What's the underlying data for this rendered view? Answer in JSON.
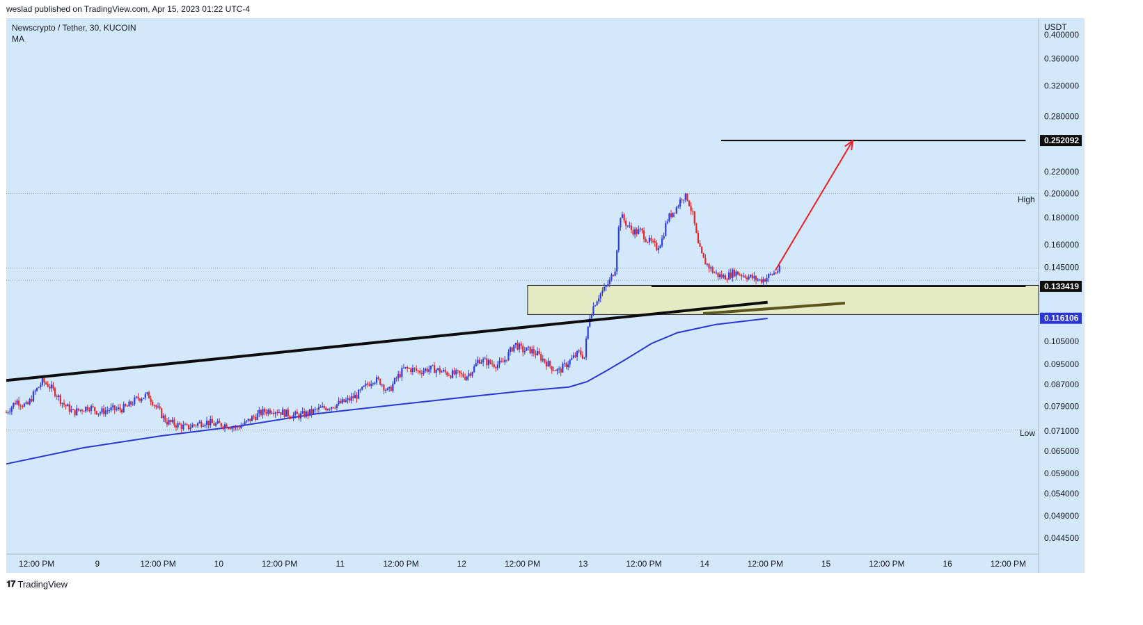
{
  "header": {
    "publish_text": "weslad published on TradingView.com, Apr 15, 2023 01:22 UTC-4"
  },
  "legend": {
    "symbol": "Newscrypto / Tether, 30, KUCOIN",
    "indicator": "MA"
  },
  "footer": {
    "brand": "TradingView"
  },
  "colors": {
    "background": "#d3e8fb",
    "up": "#2f3be6",
    "down": "#e5252a",
    "ma": "#2a35d4",
    "zone": "#e5ebc4",
    "arrow": "#ef1c24"
  },
  "chart_data": {
    "type": "candlestick",
    "title": "Newscrypto / Tether, 30, KUCOIN",
    "currency": "USDT",
    "y_scale": "log",
    "ylim": [
      0.0415,
      0.43
    ],
    "y_ticks": [
      "0.400000",
      "0.360000",
      "0.320000",
      "0.280000",
      "0.220000",
      "0.200000",
      "0.180000",
      "0.160000",
      "0.145000",
      "0.105000",
      "0.095000",
      "0.087000",
      "0.079000",
      "0.071000",
      "0.065000",
      "0.059000",
      "0.054000",
      "0.049000",
      "0.044500"
    ],
    "x_ticks": [
      "12:00 PM",
      "9",
      "12:00 PM",
      "10",
      "12:00 PM",
      "11",
      "12:00 PM",
      "12",
      "12:00 PM",
      "13",
      "12:00 PM",
      "14",
      "12:00 PM",
      "15",
      "12:00 PM",
      "16",
      "12:00 PM"
    ],
    "x_range_days": [
      "Apr 8 06:00",
      "Apr 16 18:00"
    ],
    "price_labels": [
      {
        "value": "0.252092",
        "style": "dark"
      },
      {
        "value": "0.133419",
        "style": "dark"
      },
      {
        "value": "0.116106",
        "style": "blue"
      }
    ],
    "markers": {
      "high_label": "High",
      "high_value": 0.2,
      "low_label": "Low",
      "low_value": 0.0713
    },
    "dotted_levels": [
      0.2,
      0.1445,
      0.137,
      0.0713
    ],
    "close_path": [
      [
        0,
        0.077
      ],
      [
        4,
        0.081
      ],
      [
        8,
        0.079
      ],
      [
        11,
        0.084
      ],
      [
        14,
        0.088
      ],
      [
        16,
        0.087
      ],
      [
        19,
        0.084
      ],
      [
        22,
        0.08
      ],
      [
        26,
        0.077
      ],
      [
        29,
        0.078
      ],
      [
        32,
        0.079
      ],
      [
        36,
        0.077
      ],
      [
        40,
        0.078
      ],
      [
        44,
        0.078
      ],
      [
        47,
        0.079
      ],
      [
        51,
        0.082
      ],
      [
        55,
        0.083
      ],
      [
        58,
        0.079
      ],
      [
        62,
        0.074
      ],
      [
        66,
        0.073
      ],
      [
        70,
        0.072
      ],
      [
        73,
        0.073
      ],
      [
        77,
        0.074
      ],
      [
        81,
        0.073
      ],
      [
        85,
        0.073
      ],
      [
        89,
        0.072
      ],
      [
        92,
        0.073
      ],
      [
        95,
        0.075
      ],
      [
        99,
        0.077
      ],
      [
        103,
        0.078
      ],
      [
        107,
        0.077
      ],
      [
        111,
        0.076
      ],
      [
        114,
        0.076
      ],
      [
        118,
        0.077
      ],
      [
        121,
        0.078
      ],
      [
        125,
        0.079
      ],
      [
        129,
        0.08
      ],
      [
        132,
        0.081
      ],
      [
        136,
        0.083
      ],
      [
        139,
        0.086
      ],
      [
        142,
        0.089
      ],
      [
        145,
        0.088
      ],
      [
        148,
        0.084
      ],
      [
        151,
        0.089
      ],
      [
        154,
        0.093
      ],
      [
        157,
        0.093
      ],
      [
        160,
        0.092
      ],
      [
        163,
        0.093
      ],
      [
        166,
        0.093
      ],
      [
        169,
        0.092
      ],
      [
        172,
        0.091
      ],
      [
        175,
        0.091
      ],
      [
        178,
        0.09
      ],
      [
        181,
        0.093
      ],
      [
        183,
        0.097
      ],
      [
        186,
        0.096
      ],
      [
        189,
        0.095
      ],
      [
        192,
        0.095
      ],
      [
        195,
        0.1
      ],
      [
        197,
        0.104
      ],
      [
        200,
        0.101
      ],
      [
        203,
        0.101
      ],
      [
        206,
        0.099
      ],
      [
        208,
        0.097
      ],
      [
        211,
        0.094
      ],
      [
        214,
        0.092
      ],
      [
        217,
        0.095
      ],
      [
        220,
        0.098
      ],
      [
        222,
        0.1
      ],
      [
        224,
        0.098
      ],
      [
        225,
        0.108
      ],
      [
        226,
        0.117
      ],
      [
        228,
        0.124
      ],
      [
        230,
        0.129
      ],
      [
        232,
        0.132
      ],
      [
        234,
        0.137
      ],
      [
        236,
        0.145
      ],
      [
        237,
        0.167
      ],
      [
        238,
        0.182
      ],
      [
        240,
        0.176
      ],
      [
        242,
        0.171
      ],
      [
        244,
        0.169
      ],
      [
        246,
        0.17
      ],
      [
        248,
        0.164
      ],
      [
        250,
        0.161
      ],
      [
        252,
        0.158
      ],
      [
        254,
        0.163
      ],
      [
        256,
        0.178
      ],
      [
        258,
        0.184
      ],
      [
        260,
        0.189
      ],
      [
        262,
        0.198
      ],
      [
        264,
        0.196
      ],
      [
        266,
        0.182
      ],
      [
        268,
        0.16
      ],
      [
        270,
        0.15
      ],
      [
        272,
        0.146
      ],
      [
        274,
        0.142
      ],
      [
        276,
        0.14
      ],
      [
        278,
        0.139
      ],
      [
        280,
        0.14
      ],
      [
        282,
        0.142
      ],
      [
        284,
        0.141
      ],
      [
        286,
        0.14
      ],
      [
        288,
        0.139
      ],
      [
        290,
        0.138
      ],
      [
        292,
        0.137
      ],
      [
        294,
        0.138
      ],
      [
        296,
        0.14
      ],
      [
        298,
        0.142
      ],
      [
        300,
        0.144
      ]
    ],
    "ma_path": [
      [
        0,
        0.0615
      ],
      [
        30,
        0.066
      ],
      [
        60,
        0.0695
      ],
      [
        90,
        0.0725
      ],
      [
        120,
        0.0765
      ],
      [
        150,
        0.0795
      ],
      [
        180,
        0.0825
      ],
      [
        200,
        0.0845
      ],
      [
        218,
        0.086
      ],
      [
        225,
        0.088
      ],
      [
        232,
        0.092
      ],
      [
        240,
        0.097
      ],
      [
        250,
        0.104
      ],
      [
        260,
        0.109
      ],
      [
        275,
        0.113
      ],
      [
        295,
        0.116
      ]
    ],
    "annotations": {
      "trendline": {
        "from": [
          0,
          0.0885
        ],
        "to": [
          295,
          0.1245
        ]
      },
      "trendline_extension": {
        "from": [
          270,
          0.1185
        ],
        "to": [
          325,
          0.124
        ]
      },
      "target_line": {
        "value": 0.252092,
        "from_x": 277,
        "to_x": 395
      },
      "support_line": {
        "value": 0.133419,
        "from_x": 250,
        "to_x": 395
      },
      "zone": {
        "from_x": 202,
        "low": 0.118,
        "high": 0.134
      },
      "arrow": {
        "from": [
          298,
          0.143
        ],
        "to": [
          328,
          0.252
        ]
      }
    }
  }
}
